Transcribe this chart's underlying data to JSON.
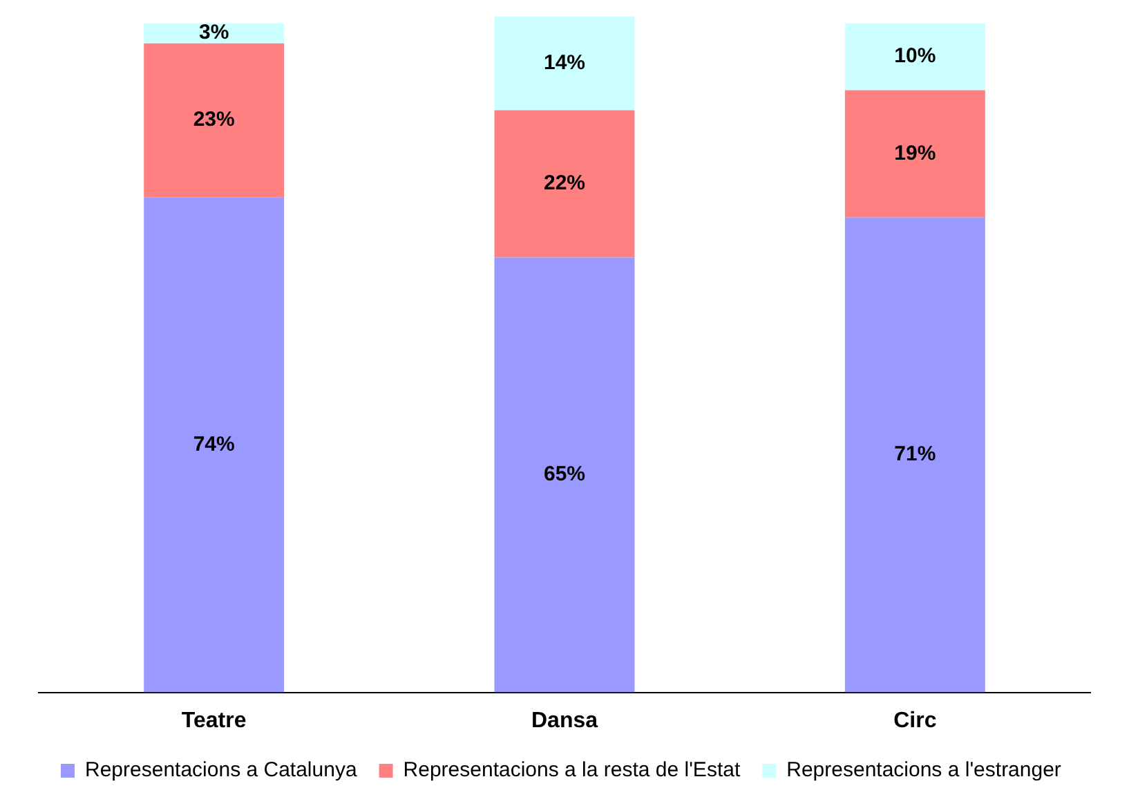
{
  "chart_data": {
    "type": "bar",
    "stacked": true,
    "categories": [
      "Teatre",
      "Dansa",
      "Circ"
    ],
    "series": [
      {
        "name": "Representacions a Catalunya",
        "color": "#9999ff",
        "values": [
          74,
          65,
          71
        ],
        "value_labels": [
          "74%",
          "65%",
          "71%"
        ]
      },
      {
        "name": "Representacions a la resta de l'Estat",
        "color": "#ff8080",
        "values": [
          23,
          22,
          19
        ],
        "value_labels": [
          "23%",
          "22%",
          "19%"
        ]
      },
      {
        "name": "Representacions a l'estranger",
        "color": "#ccffff",
        "values": [
          3,
          14,
          10
        ],
        "value_labels": [
          "3%",
          "14%",
          "10%"
        ]
      }
    ],
    "grid": false,
    "legend": "bottom",
    "tick_labels": "x"
  }
}
